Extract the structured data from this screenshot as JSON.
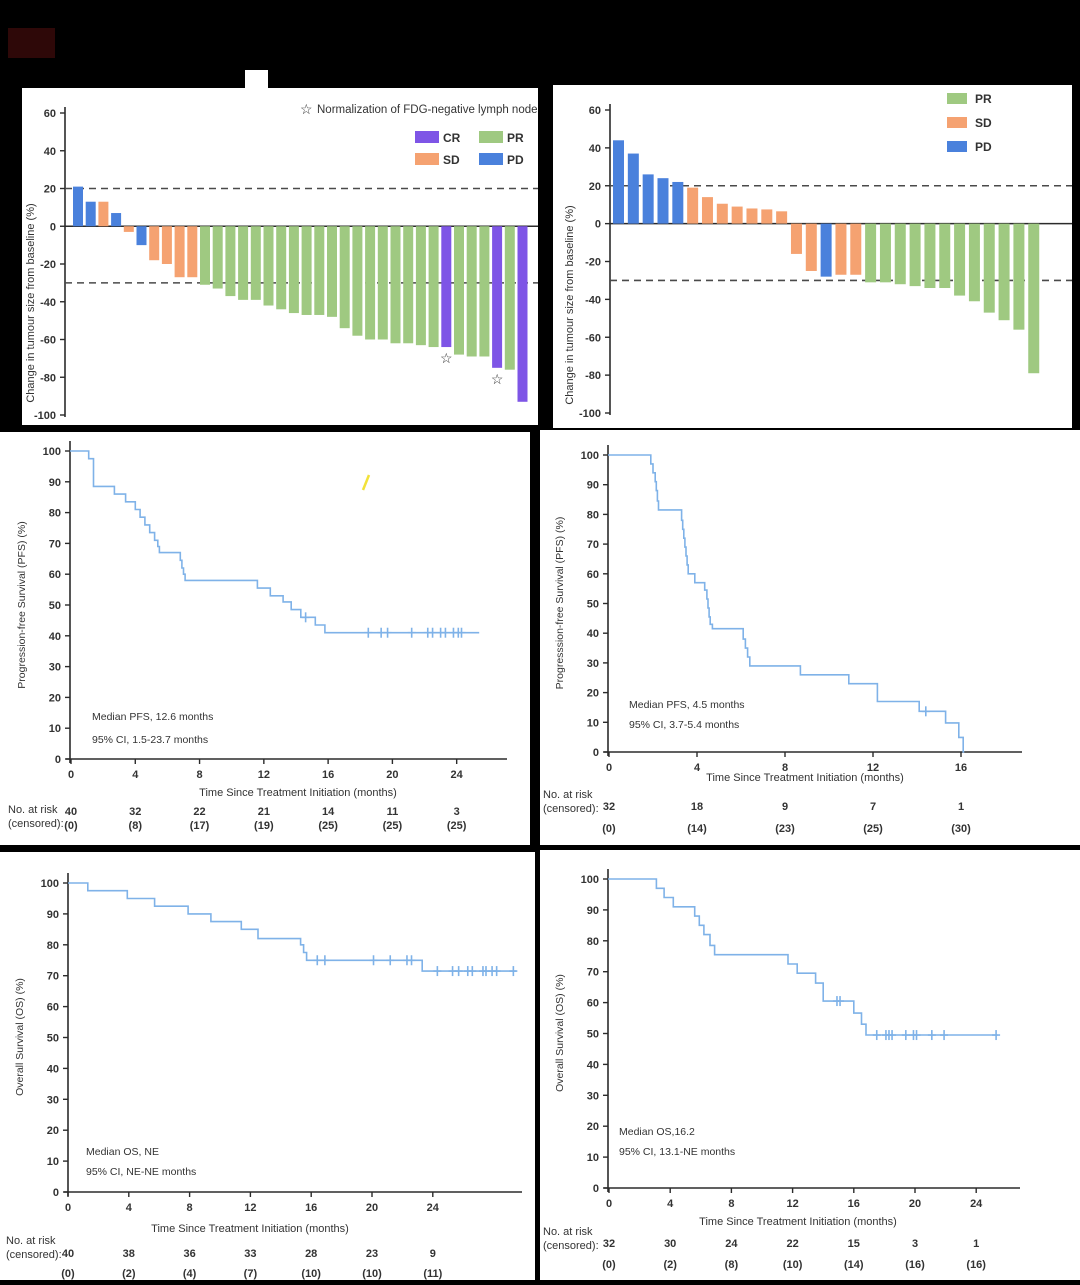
{
  "figure": {
    "background": "#000000",
    "panel_background": "#ffffff",
    "colors": {
      "CR": "#7e55e6",
      "PR": "#9fc981",
      "SD": "#f5a271",
      "PD": "#4a81dc",
      "km_line": "#7fb2e8",
      "ref_dash": "#4a4a4a",
      "axis": "#2b2b2b",
      "text": "#333333",
      "artifact_yellow": "#f2e23a",
      "corner_maroon": "#2e0808"
    }
  },
  "chart_data": [
    {
      "id": "waterfall_a",
      "type": "bar",
      "subtype": "waterfall",
      "ylabel": "Change in tumour size from baseline (%)",
      "ylim": [
        -100,
        60
      ],
      "yticks": [
        60,
        40,
        20,
        0,
        -20,
        -40,
        -60,
        -80,
        -100
      ],
      "reference_lines": [
        20,
        -30
      ],
      "note_symbol": "☆",
      "note": "Normalization of FDG-negative lymph node",
      "legend": [
        "CR",
        "PR",
        "SD",
        "PD"
      ],
      "legend_cols": 2,
      "values": [
        21,
        13,
        13,
        7,
        -3,
        -10,
        -18,
        -20,
        -27,
        -27,
        -31,
        -33,
        -37,
        -39,
        -39,
        -42,
        -44,
        -46,
        -47,
        -47,
        -48,
        -54,
        -58,
        -60,
        -60,
        -62,
        -62,
        -63,
        -64,
        -64,
        -68,
        -69,
        -69,
        -75,
        -76,
        -93
      ],
      "responses": [
        "PD",
        "PD",
        "SD",
        "PD",
        "SD",
        "PD",
        "SD",
        "SD",
        "SD",
        "SD",
        "PR",
        "PR",
        "PR",
        "PR",
        "PR",
        "PR",
        "PR",
        "PR",
        "PR",
        "PR",
        "PR",
        "PR",
        "PR",
        "PR",
        "PR",
        "PR",
        "PR",
        "PR",
        "PR",
        "CR",
        "PR",
        "PR",
        "PR",
        "CR",
        "PR",
        "CR"
      ],
      "starred_indices": [
        29,
        33
      ]
    },
    {
      "id": "waterfall_b",
      "type": "bar",
      "subtype": "waterfall",
      "ylabel": "Change in tumour size from baseline (%)",
      "ylim": [
        -100,
        60
      ],
      "yticks": [
        60,
        40,
        20,
        0,
        -20,
        -40,
        -60,
        -80,
        -100
      ],
      "reference_lines": [
        20,
        -30
      ],
      "legend": [
        "PR",
        "SD",
        "PD"
      ],
      "legend_cols": 1,
      "values": [
        44,
        37,
        26,
        24,
        22,
        19,
        14,
        10.5,
        9,
        8,
        7.5,
        6.5,
        -16,
        -25,
        -28,
        -27,
        -27,
        -31,
        -31,
        -32,
        -33,
        -34,
        -34,
        -38,
        -41,
        -47,
        -51,
        -56,
        -79
      ],
      "responses": [
        "PD",
        "PD",
        "PD",
        "PD",
        "PD",
        "SD",
        "SD",
        "SD",
        "SD",
        "SD",
        "SD",
        "SD",
        "SD",
        "SD",
        "PD",
        "SD",
        "SD",
        "PR",
        "PR",
        "PR",
        "PR",
        "PR",
        "PR",
        "PR",
        "PR",
        "PR",
        "PR",
        "PR",
        "PR"
      ],
      "starred_indices": []
    },
    {
      "id": "pfs_a",
      "type": "line",
      "subtype": "km",
      "ylabel": "Progression-free Survival (PFS) (%)",
      "xlabel": "Time Since Treatment Initiation (months)",
      "ylim": [
        0,
        100
      ],
      "yticks": [
        0,
        10,
        20,
        30,
        40,
        50,
        60,
        70,
        80,
        90,
        100
      ],
      "xticks": [
        0,
        4,
        8,
        12,
        16,
        20,
        24
      ],
      "end_time": 25.4,
      "steps": [
        [
          1.1,
          97.5
        ],
        [
          1.4,
          88.5
        ],
        [
          2.7,
          86
        ],
        [
          3.4,
          83.5
        ],
        [
          4.0,
          81
        ],
        [
          4.3,
          78.5
        ],
        [
          4.6,
          76
        ],
        [
          4.9,
          73.5
        ],
        [
          5.2,
          71
        ],
        [
          5.4,
          69
        ],
        [
          5.5,
          67
        ],
        [
          6.8,
          64.5
        ],
        [
          6.9,
          62
        ],
        [
          7.0,
          60
        ],
        [
          7.1,
          58
        ],
        [
          11.6,
          55.5
        ],
        [
          12.4,
          53
        ],
        [
          13.2,
          51
        ],
        [
          13.7,
          48.5
        ],
        [
          14.3,
          46
        ],
        [
          15.2,
          43.5
        ],
        [
          15.8,
          41
        ]
      ],
      "censors": [
        [
          14.6,
          46
        ],
        [
          18.5,
          41
        ],
        [
          19.3,
          41
        ],
        [
          19.7,
          41
        ],
        [
          21.2,
          41
        ],
        [
          22.2,
          41
        ],
        [
          22.5,
          41
        ],
        [
          23.0,
          41
        ],
        [
          23.3,
          41
        ],
        [
          23.8,
          41
        ],
        [
          24.1,
          41
        ],
        [
          24.3,
          41
        ]
      ],
      "annotations": [
        "Median PFS, 12.6 months",
        "95% CI, 1.5-23.7 months"
      ],
      "risk_header": [
        "No. at risk",
        "(censored):"
      ],
      "risk_times": [
        0,
        4,
        8,
        12,
        16,
        20,
        24
      ],
      "risk_numbers": [
        "40",
        "32",
        "22",
        "21",
        "14",
        "11",
        "3"
      ],
      "risk_censored": [
        "(0)",
        "(8)",
        "(17)",
        "(19)",
        "(25)",
        "(25)",
        "(25)"
      ]
    },
    {
      "id": "pfs_b",
      "type": "line",
      "subtype": "km",
      "ylabel": "Progresssion-free Survival (PFS) (%)",
      "xlabel": "Time Since Treatment Initiation (months)",
      "ylim": [
        0,
        100
      ],
      "yticks": [
        0,
        10,
        20,
        30,
        40,
        50,
        60,
        70,
        80,
        90,
        100
      ],
      "xticks": [
        0,
        4,
        8,
        12,
        16
      ],
      "end_time": 16.15,
      "steps": [
        [
          1.9,
          97
        ],
        [
          2.0,
          94
        ],
        [
          2.1,
          91
        ],
        [
          2.15,
          88
        ],
        [
          2.2,
          84.5
        ],
        [
          2.25,
          81.5
        ],
        [
          3.3,
          78
        ],
        [
          3.35,
          75
        ],
        [
          3.4,
          72
        ],
        [
          3.45,
          69
        ],
        [
          3.5,
          66
        ],
        [
          3.55,
          63
        ],
        [
          3.6,
          60
        ],
        [
          3.9,
          57
        ],
        [
          4.35,
          54.5
        ],
        [
          4.45,
          51.5
        ],
        [
          4.5,
          48.5
        ],
        [
          4.55,
          45.5
        ],
        [
          4.6,
          43
        ],
        [
          4.7,
          41.5
        ],
        [
          6.1,
          38
        ],
        [
          6.2,
          35
        ],
        [
          6.3,
          32
        ],
        [
          6.4,
          29
        ],
        [
          8.7,
          26
        ],
        [
          10.9,
          23
        ],
        [
          12.2,
          17
        ],
        [
          14.1,
          13.7
        ],
        [
          15.3,
          9.8
        ],
        [
          15.9,
          4.9
        ],
        [
          16.1,
          0
        ]
      ],
      "censors": [
        [
          14.4,
          13.7
        ]
      ],
      "annotations": [
        "Median PFS, 4.5 months",
        "95% CI, 3.7-5.4 months"
      ],
      "risk_header": [
        "No. at risk",
        "(censored):"
      ],
      "risk_times": [
        0,
        4,
        8,
        12,
        16
      ],
      "risk_numbers": [
        "32",
        "18",
        "9",
        "7",
        "1"
      ],
      "risk_censored": [
        "(0)",
        "(14)",
        "(23)",
        "(25)",
        "(30)"
      ]
    },
    {
      "id": "os_a",
      "type": "line",
      "subtype": "km",
      "ylabel": "Overall Survival (OS) (%)",
      "xlabel": "Time Since Treatment Initiation (months)",
      "ylim": [
        0,
        100
      ],
      "yticks": [
        0,
        10,
        20,
        30,
        40,
        50,
        60,
        70,
        80,
        90,
        100
      ],
      "xticks": [
        0,
        4,
        8,
        12,
        16,
        20,
        24
      ],
      "end_time": 29.5,
      "steps": [
        [
          1.3,
          97.5
        ],
        [
          3.9,
          95
        ],
        [
          5.7,
          92.5
        ],
        [
          7.9,
          90
        ],
        [
          9.4,
          87.5
        ],
        [
          11.4,
          85
        ],
        [
          12.5,
          82
        ],
        [
          15.3,
          80
        ],
        [
          15.5,
          77.5
        ],
        [
          15.7,
          75
        ],
        [
          23.3,
          71.5
        ]
      ],
      "censors": [
        [
          16.4,
          75
        ],
        [
          16.9,
          75
        ],
        [
          20.1,
          75
        ],
        [
          21.2,
          75
        ],
        [
          22.3,
          75
        ],
        [
          22.6,
          75
        ],
        [
          24.3,
          71.5
        ],
        [
          25.3,
          71.5
        ],
        [
          25.7,
          71.5
        ],
        [
          26.3,
          71.5
        ],
        [
          26.6,
          71.5
        ],
        [
          27.3,
          71.5
        ],
        [
          27.5,
          71.5
        ],
        [
          27.9,
          71.5
        ],
        [
          28.2,
          71.5
        ],
        [
          29.3,
          71.5
        ]
      ],
      "annotations": [
        "Median OS, NE",
        "95% CI, NE-NE months"
      ],
      "risk_header": [
        "No. at risk",
        "(censored):"
      ],
      "risk_times": [
        0,
        4,
        8,
        12,
        16,
        20,
        24
      ],
      "risk_numbers": [
        "40",
        "38",
        "36",
        "33",
        "28",
        "23",
        "9"
      ],
      "risk_censored": [
        "(0)",
        "(2)",
        "(4)",
        "(7)",
        "(10)",
        "(10)",
        "(11)"
      ]
    },
    {
      "id": "os_b",
      "type": "line",
      "subtype": "km",
      "ylabel": "Overall Survival (OS) (%)",
      "xlabel": "Time Since Treatment Initiation (months)",
      "ylim": [
        0,
        100
      ],
      "yticks": [
        0,
        10,
        20,
        30,
        40,
        50,
        60,
        70,
        80,
        90,
        100
      ],
      "xticks": [
        0,
        4,
        8,
        12,
        16,
        20,
        24
      ],
      "end_time": 25.4,
      "steps": [
        [
          3.1,
          97
        ],
        [
          3.6,
          94
        ],
        [
          4.2,
          91
        ],
        [
          5.6,
          88
        ],
        [
          5.9,
          85
        ],
        [
          6.2,
          82
        ],
        [
          6.6,
          78.5
        ],
        [
          6.9,
          75.5
        ],
        [
          11.7,
          72.5
        ],
        [
          12.3,
          69.5
        ],
        [
          13.5,
          66.3
        ],
        [
          14.0,
          60.5
        ],
        [
          16.0,
          56.6
        ],
        [
          16.5,
          53
        ],
        [
          16.8,
          49.5
        ]
      ],
      "censors": [
        [
          14.9,
          60.5
        ],
        [
          15.1,
          60.5
        ],
        [
          17.5,
          49.5
        ],
        [
          18.1,
          49.5
        ],
        [
          18.3,
          49.5
        ],
        [
          18.5,
          49.5
        ],
        [
          19.4,
          49.5
        ],
        [
          19.9,
          49.5
        ],
        [
          20.1,
          49.5
        ],
        [
          21.1,
          49.5
        ],
        [
          21.9,
          49.5
        ],
        [
          25.3,
          49.5
        ]
      ],
      "annotations": [
        "Median OS,16.2",
        "95% CI, 13.1-NE months"
      ],
      "risk_header": [
        "No. at risk",
        "(censored):"
      ],
      "risk_times": [
        0,
        4,
        8,
        12,
        16,
        20,
        24
      ],
      "risk_numbers": [
        "32",
        "30",
        "24",
        "22",
        "15",
        "3",
        "1"
      ],
      "risk_censored": [
        "(0)",
        "(2)",
        "(8)",
        "(10)",
        "(14)",
        "(16)",
        "(16)"
      ]
    }
  ]
}
